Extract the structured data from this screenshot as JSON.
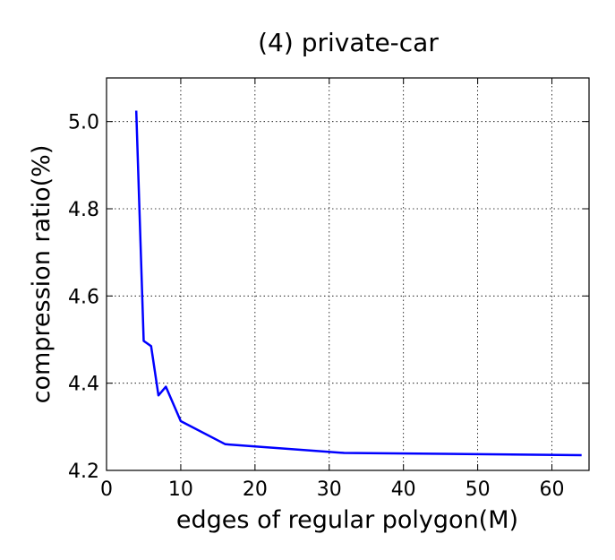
{
  "chart_data": {
    "type": "line",
    "title": "(4) private-car",
    "xlabel": "edges of regular polygon(M)",
    "ylabel": "compression ratio(%)",
    "xlim": [
      0,
      65
    ],
    "ylim": [
      4.2,
      5.1
    ],
    "xticks": [
      "0",
      "10",
      "20",
      "30",
      "40",
      "50",
      "60"
    ],
    "yticks": [
      "4.2",
      "4.4",
      "4.6",
      "4.8",
      "5.0"
    ],
    "grid": true,
    "series": [
      {
        "color": "#0000ff",
        "x": [
          4,
          5,
          6,
          7,
          8,
          10,
          16,
          32,
          64
        ],
        "y": [
          5.025,
          4.497,
          4.485,
          4.372,
          4.392,
          4.313,
          4.26,
          4.24,
          4.235
        ]
      }
    ]
  }
}
